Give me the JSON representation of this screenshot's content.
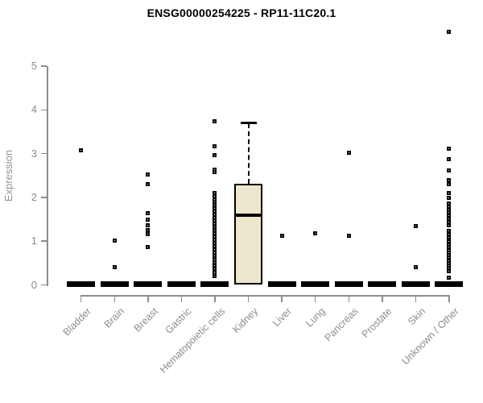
{
  "colors": {
    "box_fill": "#ede8cd",
    "box_border": "#000000",
    "axis": "#8c8c8c",
    "tick_label": "#8c8c8c",
    "y_axis_label": "#949494",
    "title": "#000000",
    "point": "#000000",
    "background": "#ffffff"
  },
  "chart_data": {
    "type": "boxplot",
    "title": "ENSG00000254225 - RP11-11C20.1",
    "xlabel": "",
    "ylabel": "Expression",
    "ylim": [
      0,
      5.9
    ],
    "yticks": [
      0,
      1,
      2,
      3,
      4,
      5
    ],
    "grid": false,
    "legend": false,
    "categories": [
      "Bladder",
      "Brain",
      "Breast",
      "Gastric",
      "Hematopoietic cells",
      "Kidney",
      "Liver",
      "Lung",
      "Pancreas",
      "Prostate",
      "Skin",
      "Unknown / Other"
    ],
    "series": [
      {
        "category": "Bladder",
        "box": {
          "collapsed": true,
          "median": 0.02
        },
        "outliers": [
          3.08
        ]
      },
      {
        "category": "Brain",
        "box": {
          "collapsed": true,
          "median": 0.02
        },
        "outliers": [
          1.01,
          0.41
        ]
      },
      {
        "category": "Breast",
        "box": {
          "collapsed": true,
          "median": 0.02
        },
        "outliers": [
          2.53,
          2.3,
          1.64,
          1.5,
          1.36,
          1.26,
          1.16,
          0.87
        ]
      },
      {
        "category": "Gastric",
        "box": {
          "collapsed": true,
          "median": 0.02
        },
        "outliers": []
      },
      {
        "category": "Hematopoietic cells",
        "box": {
          "collapsed": true,
          "median": 0.02
        },
        "outliers": [
          3.74,
          3.17,
          2.97,
          2.64,
          2.57,
          2.1,
          2.03,
          1.96,
          1.89,
          1.82,
          1.75,
          1.68,
          1.6,
          1.53,
          1.47,
          1.4,
          1.33,
          1.25,
          1.18,
          1.1,
          1.03,
          0.96,
          0.89,
          0.81,
          0.74,
          0.66,
          0.58,
          0.51,
          0.44,
          0.36,
          0.27,
          0.2
        ]
      },
      {
        "category": "Kidney",
        "box": {
          "collapsed": false,
          "q1": 0.0,
          "median": 1.6,
          "q3": 2.32,
          "whisker_high": 3.7
        },
        "outliers": []
      },
      {
        "category": "Liver",
        "box": {
          "collapsed": true,
          "median": 0.02
        },
        "outliers": [
          1.13
        ]
      },
      {
        "category": "Lung",
        "box": {
          "collapsed": true,
          "median": 0.02
        },
        "outliers": [
          1.17
        ]
      },
      {
        "category": "Pancreas",
        "box": {
          "collapsed": true,
          "median": 0.02
        },
        "outliers": [
          3.02,
          1.12
        ]
      },
      {
        "category": "Prostate",
        "box": {
          "collapsed": true,
          "median": 0.02
        },
        "outliers": []
      },
      {
        "category": "Skin",
        "box": {
          "collapsed": true,
          "median": 0.02
        },
        "outliers": [
          1.34,
          0.4
        ]
      },
      {
        "category": "Unknown / Other",
        "box": {
          "collapsed": true,
          "median": 0.02
        },
        "outliers": [
          5.79,
          3.11,
          2.88,
          2.61,
          2.4,
          2.3,
          2.1,
          1.98,
          1.86,
          1.79,
          1.72,
          1.65,
          1.58,
          1.51,
          1.44,
          1.37,
          1.24,
          1.16,
          1.08,
          1.0,
          0.93,
          0.87,
          0.8,
          0.74,
          0.68,
          0.62,
          0.56,
          0.5,
          0.44,
          0.38,
          0.32,
          0.17
        ]
      }
    ]
  }
}
